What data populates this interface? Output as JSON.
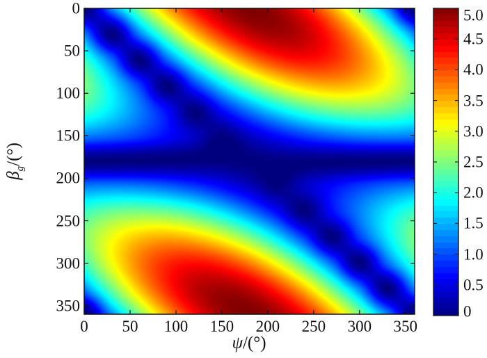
{
  "chart_data": {
    "type": "heatmap",
    "title": "",
    "xlabel_symbol": "ψ",
    "xlabel_unit": "/(°)",
    "ylabel_symbol": "β",
    "ylabel_sub": "g",
    "ylabel_unit": "/(°)",
    "xlim": [
      0,
      360
    ],
    "ylim": [
      0,
      360
    ],
    "y_inverted": true,
    "x_ticks": [
      "0",
      "50",
      "100",
      "150",
      "200",
      "250",
      "300",
      "350"
    ],
    "y_ticks": [
      "0",
      "50",
      "100",
      "150",
      "200",
      "250",
      "300",
      "350"
    ],
    "colorbar": {
      "range": [
        0,
        5
      ],
      "colormap": "jet",
      "ticks": [
        "0",
        "0.5",
        "1.0",
        "1.5",
        "2.0",
        "2.5",
        "3.0",
        "3.5",
        "4.0",
        "4.5",
        "5.0"
      ]
    },
    "grid_step_deg": 30,
    "x": [
      0,
      30,
      60,
      90,
      120,
      150,
      180,
      210,
      240,
      270,
      300,
      330,
      360
    ],
    "y": [
      0,
      30,
      60,
      90,
      120,
      150,
      180,
      210,
      240,
      270,
      300,
      330,
      360
    ],
    "values": [
      [
        0,
        1.29,
        2.5,
        3.54,
        4.33,
        4.83,
        5,
        4.83,
        4.33,
        3.54,
        2.5,
        1.29,
        0
      ],
      [
        1.25,
        0,
        1.25,
        2.42,
        3.42,
        4.18,
        4.67,
        4.83,
        4.67,
        4.18,
        3.42,
        2.42,
        1.25
      ],
      [
        2.17,
        1.12,
        0,
        1.12,
        2.17,
        3.06,
        3.75,
        4.18,
        4.33,
        4.18,
        3.75,
        3.06,
        2.17
      ],
      [
        2.5,
        1.77,
        0.91,
        0,
        0.91,
        1.77,
        2.5,
        3.06,
        3.41,
        3.54,
        3.41,
        3.06,
        2.5
      ],
      [
        2.17,
        1.77,
        1.25,
        0.65,
        0,
        0.65,
        1.25,
        1.77,
        2.17,
        2.42,
        2.5,
        2.42,
        2.17
      ],
      [
        1.25,
        1.12,
        0.92,
        0.65,
        0.33,
        0,
        0.33,
        0.65,
        0.92,
        1.12,
        1.25,
        1.29,
        1.25
      ],
      [
        0,
        0,
        0,
        0,
        0,
        0,
        0,
        0,
        0,
        0,
        0,
        0,
        0
      ],
      [
        1.25,
        1.29,
        1.25,
        1.12,
        0.92,
        0.65,
        0.33,
        0,
        0.33,
        0.65,
        0.92,
        1.12,
        1.25
      ],
      [
        2.17,
        2.42,
        2.5,
        2.42,
        2.17,
        1.77,
        1.25,
        0.65,
        0,
        0.65,
        1.25,
        1.77,
        2.17
      ],
      [
        2.5,
        3.06,
        3.41,
        3.54,
        3.41,
        3.06,
        2.5,
        1.77,
        0.91,
        0,
        0.91,
        1.77,
        2.5
      ],
      [
        2.17,
        3.06,
        3.75,
        4.18,
        4.33,
        4.18,
        3.75,
        3.06,
        2.17,
        1.12,
        0,
        1.12,
        2.17
      ],
      [
        1.25,
        2.42,
        3.42,
        4.18,
        4.67,
        4.83,
        4.67,
        4.18,
        3.42,
        2.42,
        1.25,
        0,
        1.25
      ],
      [
        0,
        1.29,
        2.5,
        3.54,
        4.33,
        4.83,
        5,
        4.83,
        4.33,
        3.54,
        2.5,
        1.29,
        0
      ]
    ]
  }
}
